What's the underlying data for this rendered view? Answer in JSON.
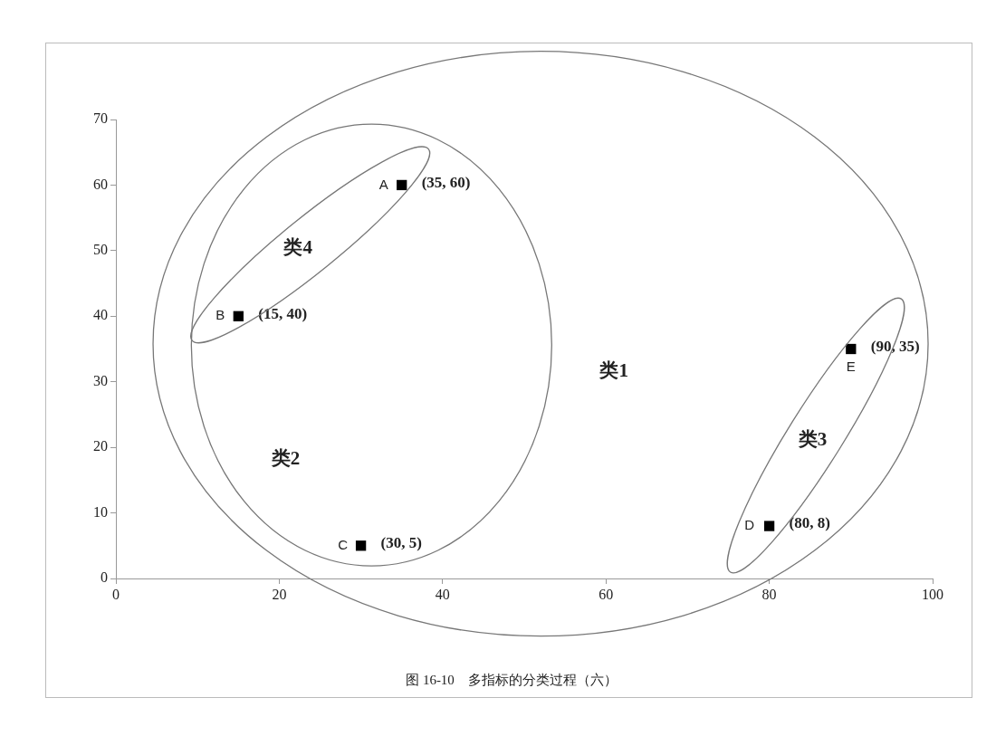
{
  "chart_data": {
    "type": "scatter",
    "marker": "square",
    "grid": false,
    "legend": false,
    "x": [
      35,
      15,
      30,
      80,
      90
    ],
    "values": [
      60,
      40,
      5,
      8,
      35
    ],
    "color": "#000000",
    "value_labels": [
      "(35, 60)",
      "(15, 40)",
      "(30, 5)",
      "(80, 8)",
      "(90, 35)"
    ],
    "xlim": [
      0,
      100
    ],
    "xticks": [
      0,
      20,
      40,
      60,
      80,
      100
    ],
    "ylim": [
      0,
      70
    ],
    "yticks": [
      0,
      10,
      20,
      30,
      40,
      50,
      60,
      70
    ],
    "annotations": [
      {
        "text": "A",
        "x": 35,
        "y": 60
      },
      {
        "text": "B",
        "x": 15,
        "y": 40
      },
      {
        "text": "C",
        "x": 30,
        "y": 5
      },
      {
        "text": "D",
        "x": 80,
        "y": 8
      },
      {
        "text": "E",
        "x": 90,
        "y": 35
      },
      "类1",
      "类2",
      "类3",
      "类4",
      "图 16-10　多指标的分类过程（六）"
    ]
  }
}
